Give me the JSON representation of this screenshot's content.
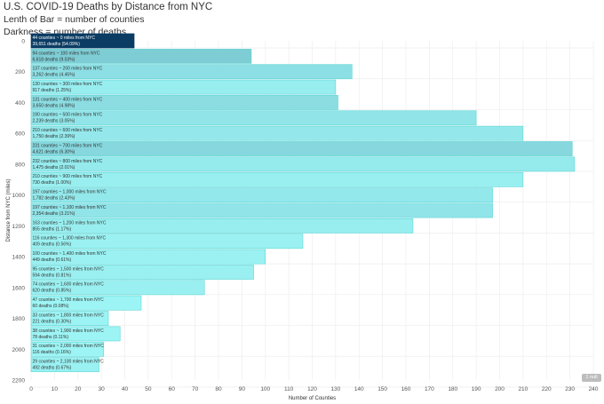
{
  "header": {
    "title": "U.S. COVID-19 Deaths by Distance from NYC",
    "subtitle_1": "Lenth of Bar = number of counties",
    "subtitle_2": "Darkness = number of deaths"
  },
  "badge": "1 null",
  "colors": {
    "bar_light": "#9ef5f5",
    "bar_dark": "#0b3c63",
    "bar_stroke": "#5fd6d6",
    "grid": "#eeeeee"
  },
  "chart_data": {
    "type": "bar",
    "orientation": "horizontal",
    "xlabel": "Number of Counties",
    "ylabel": "Distance from NYC (miles)",
    "xlim": [
      0,
      240
    ],
    "ylim": [
      0,
      2200
    ],
    "xticks": [
      0,
      10,
      20,
      30,
      40,
      50,
      60,
      70,
      80,
      90,
      100,
      110,
      120,
      130,
      140,
      150,
      160,
      170,
      180,
      190,
      200,
      210,
      220,
      230,
      240
    ],
    "yticks": [
      0,
      200,
      400,
      600,
      800,
      1000,
      1200,
      1400,
      1600,
      1800,
      2000,
      2200
    ],
    "grid": true,
    "bars": [
      {
        "distance": 0,
        "counties": 44,
        "deaths": 39651,
        "line1": "44 counties ~ 0 miles from NYC",
        "line2": "39,651 deaths (54.09%)"
      },
      {
        "distance": 100,
        "counties": 94,
        "deaths": 6618,
        "line1": "94 counties ~ 100 miles from NYC",
        "line2": "6,618 deaths (9.03%)"
      },
      {
        "distance": 200,
        "counties": 137,
        "deaths": 3262,
        "line1": "137 counties ~ 200 miles from NYC",
        "line2": "3,262 deaths (4.45%)"
      },
      {
        "distance": 300,
        "counties": 130,
        "deaths": 917,
        "line1": "130 counties ~ 300 miles from NYC",
        "line2": "917 deaths (1.25%)"
      },
      {
        "distance": 400,
        "counties": 131,
        "deaths": 3650,
        "line1": "131 counties ~ 400 miles from NYC",
        "line2": "3,650 deaths (4.98%)"
      },
      {
        "distance": 500,
        "counties": 190,
        "deaths": 2239,
        "line1": "190 counties ~ 500 miles from NYC",
        "line2": "2,239 deaths (3.05%)"
      },
      {
        "distance": 600,
        "counties": 210,
        "deaths": 1750,
        "line1": "210 counties ~ 600 miles from NYC",
        "line2": "1,750 deaths (2.39%)"
      },
      {
        "distance": 700,
        "counties": 231,
        "deaths": 4621,
        "line1": "231 counties ~ 700 miles from NYC",
        "line2": "4,621 deaths (6.30%)"
      },
      {
        "distance": 800,
        "counties": 232,
        "deaths": 1475,
        "line1": "232 counties ~ 800 miles from NYC",
        "line2": "1,475 deaths (2.01%)"
      },
      {
        "distance": 900,
        "counties": 210,
        "deaths": 730,
        "line1": "210 counties ~ 900 miles from NYC",
        "line2": "730 deaths (1.00%)"
      },
      {
        "distance": 1000,
        "counties": 197,
        "deaths": 1782,
        "line1": "197 counties ~ 1,000 miles from NYC",
        "line2": "1,782 deaths (2.43%)"
      },
      {
        "distance": 1100,
        "counties": 197,
        "deaths": 2354,
        "line1": "197 counties ~ 1,100 miles from NYC",
        "line2": "2,354 deaths (3.21%)"
      },
      {
        "distance": 1200,
        "counties": 163,
        "deaths": 855,
        "line1": "163 counties ~ 1,200 miles from NYC",
        "line2": "855 deaths (1.17%)"
      },
      {
        "distance": 1300,
        "counties": 116,
        "deaths": 409,
        "line1": "116 counties ~ 1,300 miles from NYC",
        "line2": "409 deaths (0.56%)"
      },
      {
        "distance": 1400,
        "counties": 100,
        "deaths": 449,
        "line1": "100 counties ~ 1,400 miles from NYC",
        "line2": "449 deaths (0.61%)"
      },
      {
        "distance": 1500,
        "counties": 95,
        "deaths": 594,
        "line1": "95 counties ~ 1,500 miles from NYC",
        "line2": "594 deaths (0.81%)"
      },
      {
        "distance": 1600,
        "counties": 74,
        "deaths": 620,
        "line1": "74 counties ~ 1,600 miles from NYC",
        "line2": "620 deaths (0.85%)"
      },
      {
        "distance": 1700,
        "counties": 47,
        "deaths": 60,
        "line1": "47 counties ~ 1,700 miles from NYC",
        "line2": "60 deaths (0.08%)"
      },
      {
        "distance": 1800,
        "counties": 33,
        "deaths": 221,
        "line1": "33 counties ~ 1,800 miles from NYC",
        "line2": "221 deaths (0.30%)"
      },
      {
        "distance": 1900,
        "counties": 38,
        "deaths": 78,
        "line1": "38 counties ~ 1,900 miles from NYC",
        "line2": "78 deaths (0.11%)"
      },
      {
        "distance": 2000,
        "counties": 31,
        "deaths": 116,
        "line1": "31 counties ~ 2,000 miles from NYC",
        "line2": "116 deaths (0.16%)"
      },
      {
        "distance": 2100,
        "counties": 29,
        "deaths": 492,
        "line1": "29 counties ~ 2,100 miles from NYC",
        "line2": "492 deaths (0.67%)"
      }
    ]
  }
}
